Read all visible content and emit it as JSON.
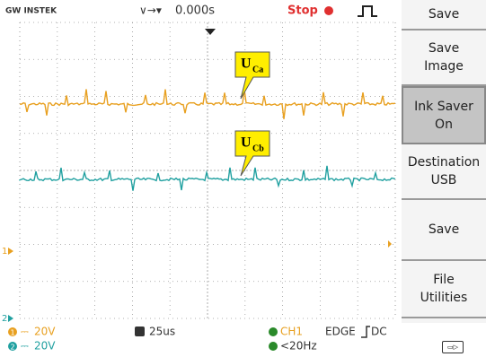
{
  "header": {
    "brand": "GW INSTEK",
    "timebase_offset": "0.000s",
    "run_state": "Stop"
  },
  "menu": {
    "title": "Save",
    "items": [
      {
        "lines": [
          "Save",
          "Image"
        ]
      },
      {
        "lines": [
          "Ink Saver",
          "On"
        ]
      },
      {
        "lines": [
          "Destination",
          "USB"
        ]
      },
      {
        "lines": [
          "Save"
        ]
      },
      {
        "lines": [
          "File",
          "Utilities"
        ]
      }
    ]
  },
  "annotations": [
    {
      "main": "U",
      "sub": "Ca"
    },
    {
      "main": "U",
      "sub": "Cb"
    }
  ],
  "channel_markers": [
    "1",
    "2"
  ],
  "status": {
    "ch1_scale": "20V",
    "ch2_scale": "20V",
    "timebase": "25us",
    "trigger_source": "CH1",
    "trigger_type": "EDGE",
    "trigger_coupling": "DC",
    "frequency": "<20Hz"
  }
}
